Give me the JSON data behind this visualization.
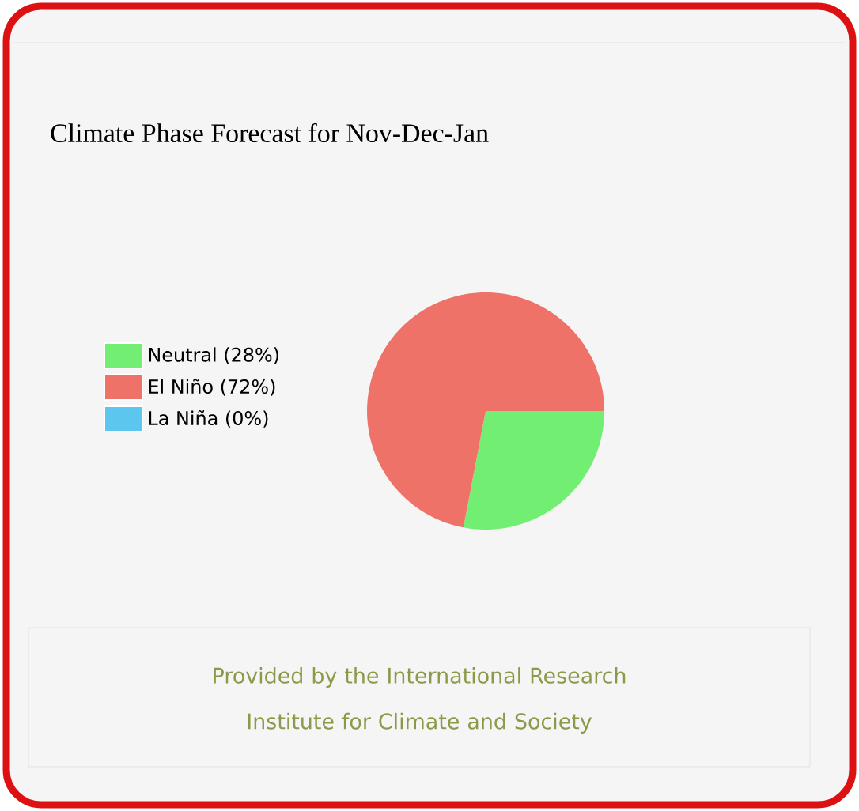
{
  "chart_data": {
    "type": "pie",
    "title": "Climate Phase Forecast for Nov-Dec-Jan",
    "categories": [
      "Neutral (28%)",
      "El Niño (72%)",
      "La Niña (0%)"
    ],
    "values": [
      28,
      72,
      0
    ],
    "colors": [
      "#72ee72",
      "#ee7268",
      "#5cc6ee"
    ],
    "legend": "left",
    "annotations": [
      "Provided by the International Research Institute for Climate and Society"
    ]
  }
}
